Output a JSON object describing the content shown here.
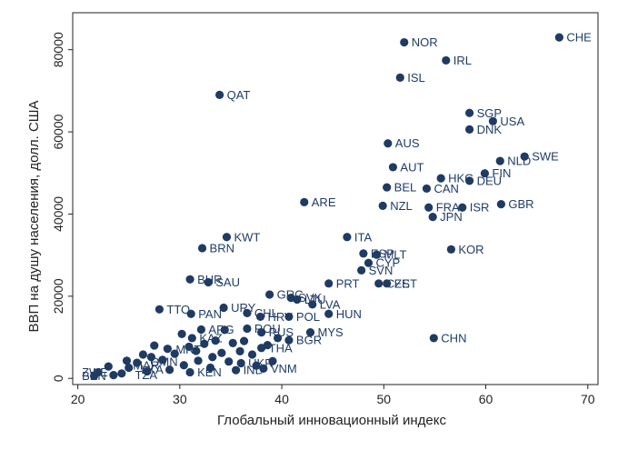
{
  "chart_data": {
    "type": "scatter",
    "xlabel": "Глобальный инновационный индекс",
    "ylabel": "ВВП на душу населения, долл. США",
    "xlim": [
      19.5,
      71
    ],
    "ylim": [
      -1500,
      89000
    ],
    "xticks": [
      20,
      30,
      40,
      50,
      60,
      70
    ],
    "yticks": [
      0,
      20000,
      40000,
      60000,
      80000
    ],
    "grid": false,
    "colors": {
      "point": "#1f3b63",
      "label": "#1f3c66",
      "axis": "#222222"
    },
    "labeled_points": [
      {
        "label": "CHE",
        "x": 67.2,
        "y": 83000
      },
      {
        "label": "NOR",
        "x": 52.0,
        "y": 81800
      },
      {
        "label": "IRL",
        "x": 56.1,
        "y": 77400
      },
      {
        "label": "ISL",
        "x": 51.6,
        "y": 73200
      },
      {
        "label": "QAT",
        "x": 33.9,
        "y": 69000
      },
      {
        "label": "SGP",
        "x": 58.4,
        "y": 64600
      },
      {
        "label": "USA",
        "x": 60.7,
        "y": 62600
      },
      {
        "label": "DNK",
        "x": 58.4,
        "y": 60600
      },
      {
        "label": "AUS",
        "x": 50.4,
        "y": 57200
      },
      {
        "label": "SWE",
        "x": 63.8,
        "y": 54000
      },
      {
        "label": "NLD",
        "x": 61.4,
        "y": 52900
      },
      {
        "label": "AUT",
        "x": 50.9,
        "y": 51400
      },
      {
        "label": "FIN",
        "x": 59.9,
        "y": 49900
      },
      {
        "label": "HKG",
        "x": 55.6,
        "y": 48700
      },
      {
        "label": "DEU",
        "x": 58.4,
        "y": 48100
      },
      {
        "label": "BEL",
        "x": 50.3,
        "y": 46500
      },
      {
        "label": "CAN",
        "x": 54.2,
        "y": 46200
      },
      {
        "label": "ARE",
        "x": 42.2,
        "y": 42900
      },
      {
        "label": "NZL",
        "x": 49.9,
        "y": 42000
      },
      {
        "label": "FRA",
        "x": 54.4,
        "y": 41600
      },
      {
        "label": "ISR",
        "x": 57.7,
        "y": 41600
      },
      {
        "label": "GBR",
        "x": 61.5,
        "y": 42400
      },
      {
        "label": "JPN",
        "x": 54.8,
        "y": 39300
      },
      {
        "label": "KWT",
        "x": 34.6,
        "y": 34400
      },
      {
        "label": "ITA",
        "x": 46.4,
        "y": 34400
      },
      {
        "label": "BRN",
        "x": 32.2,
        "y": 31700
      },
      {
        "label": "KOR",
        "x": 56.6,
        "y": 31400
      },
      {
        "label": "ESP",
        "x": 48.0,
        "y": 30400
      },
      {
        "label": "MLT",
        "x": 49.3,
        "y": 30100
      },
      {
        "label": "CYP",
        "x": 48.5,
        "y": 28100
      },
      {
        "label": "SVN",
        "x": 47.8,
        "y": 26300
      },
      {
        "label": "BHR",
        "x": 31.0,
        "y": 24100
      },
      {
        "label": "SAU",
        "x": 32.8,
        "y": 23400
      },
      {
        "label": "PRT",
        "x": 44.6,
        "y": 23100
      },
      {
        "label": "CZE",
        "x": 49.5,
        "y": 23100
      },
      {
        "label": "EST",
        "x": 50.3,
        "y": 23100
      },
      {
        "label": "GRC",
        "x": 38.8,
        "y": 20400
      },
      {
        "label": "SVK",
        "x": 40.9,
        "y": 19600
      },
      {
        "label": "LTU",
        "x": 41.5,
        "y": 19200
      },
      {
        "label": "LVA",
        "x": 43.0,
        "y": 18000
      },
      {
        "label": "TTO",
        "x": 28.0,
        "y": 16800
      },
      {
        "label": "URY",
        "x": 34.3,
        "y": 17200
      },
      {
        "label": "PAN",
        "x": 31.1,
        "y": 15700
      },
      {
        "label": "CHL",
        "x": 36.6,
        "y": 15900
      },
      {
        "label": "HUN",
        "x": 44.6,
        "y": 15700
      },
      {
        "label": "HRV",
        "x": 37.9,
        "y": 15000
      },
      {
        "label": "POL",
        "x": 40.7,
        "y": 15000
      },
      {
        "label": "ARG",
        "x": 32.1,
        "y": 11900
      },
      {
        "label": "KAZ",
        "x": 31.2,
        "y": 9800
      },
      {
        "label": "ROU",
        "x": 36.6,
        "y": 12100
      },
      {
        "label": "RUS",
        "x": 38.0,
        "y": 11200
      },
      {
        "label": "MYS",
        "x": 42.8,
        "y": 11200
      },
      {
        "label": "BGR",
        "x": 40.7,
        "y": 9300
      },
      {
        "label": "THA",
        "x": 38.0,
        "y": 7400
      },
      {
        "label": "CHN",
        "x": 54.9,
        "y": 9800
      },
      {
        "label": "UKR",
        "x": 36.0,
        "y": 3700
      },
      {
        "label": "IND",
        "x": 35.5,
        "y": 2000
      },
      {
        "label": "VNM",
        "x": 38.2,
        "y": 2400
      },
      {
        "label": "KEN",
        "x": 31.0,
        "y": 1500
      }
    ],
    "unlabeled_points": [
      {
        "x": 22.0,
        "y": 1500
      },
      {
        "x": 23.5,
        "y": 800
      },
      {
        "x": 24.3,
        "y": 1200
      },
      {
        "x": 25.0,
        "y": 2600
      },
      {
        "x": 25.8,
        "y": 3800
      },
      {
        "x": 26.4,
        "y": 5800
      },
      {
        "x": 27.2,
        "y": 5200
      },
      {
        "x": 27.5,
        "y": 8000
      },
      {
        "x": 28.3,
        "y": 4500
      },
      {
        "x": 28.8,
        "y": 7200
      },
      {
        "x": 29.5,
        "y": 6000
      },
      {
        "x": 30.2,
        "y": 10800
      },
      {
        "x": 30.4,
        "y": 3200
      },
      {
        "x": 30.9,
        "y": 7700
      },
      {
        "x": 31.6,
        "y": 6700
      },
      {
        "x": 32.4,
        "y": 8400
      },
      {
        "x": 33.2,
        "y": 5200
      },
      {
        "x": 33.5,
        "y": 9200
      },
      {
        "x": 34.1,
        "y": 6200
      },
      {
        "x": 34.8,
        "y": 4100
      },
      {
        "x": 35.2,
        "y": 8600
      },
      {
        "x": 35.9,
        "y": 6600
      },
      {
        "x": 36.3,
        "y": 9100
      },
      {
        "x": 37.1,
        "y": 5800
      },
      {
        "x": 37.5,
        "y": 3100
      },
      {
        "x": 38.6,
        "y": 8100
      },
      {
        "x": 39.1,
        "y": 4200
      },
      {
        "x": 39.6,
        "y": 9800
      },
      {
        "x": 33.0,
        "y": 2600
      },
      {
        "x": 29.0,
        "y": 2100
      },
      {
        "x": 26.8,
        "y": 1700
      },
      {
        "x": 24.8,
        "y": 4300
      },
      {
        "x": 23.0,
        "y": 2900
      },
      {
        "x": 21.6,
        "y": 600
      },
      {
        "x": 31.8,
        "y": 4300
      },
      {
        "x": 34.4,
        "y": 11800
      }
    ],
    "extra_labels": [
      {
        "text": "ZWE",
        "x": 20.4,
        "y": 1500
      },
      {
        "text": "BEN",
        "x": 20.4,
        "y": 600
      },
      {
        "text": "MRT",
        "x": 29.6,
        "y": 7000
      },
      {
        "text": "OMN",
        "x": 27.1,
        "y": 4000
      },
      {
        "text": "MAR",
        "x": 25.4,
        "y": 3200
      },
      {
        "text": "LKA",
        "x": 26.2,
        "y": 2100
      },
      {
        "text": "TZA",
        "x": 25.6,
        "y": 800
      }
    ]
  }
}
